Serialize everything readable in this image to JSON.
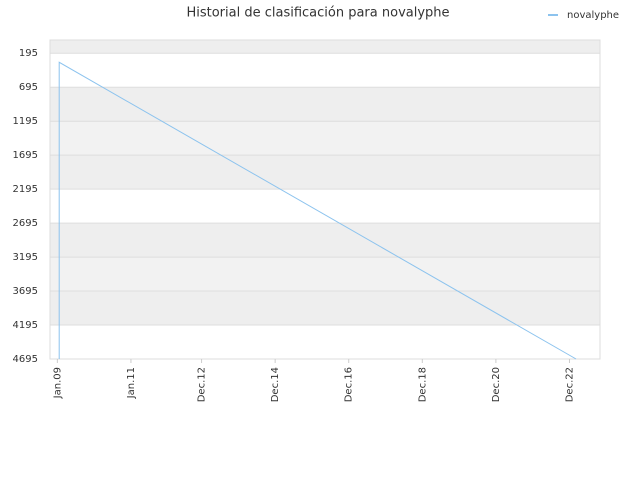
{
  "chart_data": {
    "type": "line",
    "title": "Historial de clasificación para novalyphe",
    "x": [
      2009.05,
      2009.05,
      2023.1
    ],
    "series": [
      {
        "name": "novalyphe",
        "color": "#8cc3ee",
        "values": [
          4695,
          328,
          4695
        ]
      }
    ],
    "xlim": [
      2008.8,
      2023.75
    ],
    "xticks": [
      {
        "value": 2009.0,
        "label": "Jan.09"
      },
      {
        "value": 2011.0,
        "label": "Jan.11"
      },
      {
        "value": 2012.92,
        "label": "Dec.12"
      },
      {
        "value": 2014.92,
        "label": "Dec.14"
      },
      {
        "value": 2016.92,
        "label": "Dec.16"
      },
      {
        "value": 2018.92,
        "label": "Dec.18"
      },
      {
        "value": 2020.92,
        "label": "Dec.20"
      },
      {
        "value": 2022.92,
        "label": "Dec.22"
      }
    ],
    "ylim": [
      0,
      4695
    ],
    "y_inverted": true,
    "yticks": [
      195,
      695,
      1195,
      1695,
      2195,
      2695,
      3195,
      3695,
      4195,
      4695
    ],
    "grid": true,
    "legend": "top-right"
  }
}
